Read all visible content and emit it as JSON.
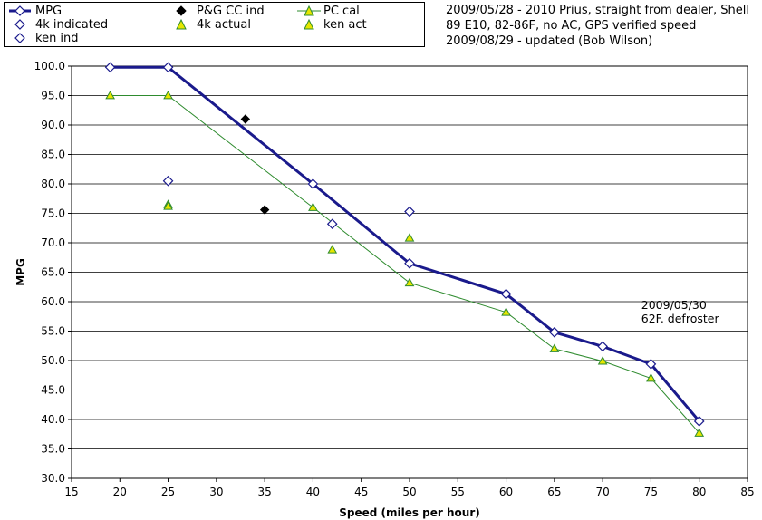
{
  "chart_data": {
    "type": "line",
    "xlabel": "Speed (miles per hour)",
    "ylabel": "MPG",
    "xlim": [
      15,
      85
    ],
    "ylim": [
      30,
      100
    ],
    "xticks": [
      "15",
      "20",
      "25",
      "30",
      "35",
      "40",
      "45",
      "50",
      "55",
      "60",
      "65",
      "70",
      "75",
      "80",
      "85"
    ],
    "yticks": [
      "30.0",
      "35.0",
      "40.0",
      "45.0",
      "50.0",
      "55.0",
      "60.0",
      "65.0",
      "70.0",
      "75.0",
      "80.0",
      "85.0",
      "90.0",
      "95.0",
      "100.0"
    ],
    "grid": "horizontal",
    "legend": [
      "MPG",
      "4k indicated",
      "ken ind",
      "P&G CC ind",
      "4k actual",
      "PC cal",
      "ken act"
    ],
    "series": [
      {
        "name": "MPG",
        "style": "line-diamond",
        "color": "#1a1a8c",
        "x": [
          19,
          25,
          40,
          50,
          60,
          65,
          70,
          75,
          80
        ],
        "y": [
          99.8,
          99.8,
          80.0,
          66.5,
          61.3,
          54.8,
          52.4,
          49.4,
          39.7
        ]
      },
      {
        "name": "PC cal",
        "style": "line-triangle",
        "color": "#2e8b2e",
        "x": [
          19,
          25,
          40,
          50,
          60,
          65,
          70,
          75,
          80
        ],
        "y": [
          95.0,
          95.0,
          76.0,
          63.2,
          58.2,
          52.0,
          49.9,
          47.0,
          37.7
        ]
      },
      {
        "name": "4k indicated",
        "style": "diamond-open",
        "color": "#1a1a8c",
        "x": [
          25,
          42,
          50
        ],
        "y": [
          80.5,
          73.2,
          75.3
        ]
      },
      {
        "name": "P&G CC ind",
        "style": "diamond-filled",
        "color": "#000000",
        "x": [
          33,
          35
        ],
        "y": [
          91.0,
          75.6
        ]
      },
      {
        "name": "4k actual",
        "style": "triangle-yellow",
        "color": "#cccc00",
        "x": [
          25,
          42,
          50
        ],
        "y": [
          76.5,
          68.8,
          70.8
        ]
      },
      {
        "name": "ken act",
        "style": "triangle-yellow",
        "color": "#cccc00",
        "x": [
          25
        ],
        "y": [
          76.2
        ]
      }
    ],
    "annotations": [
      {
        "text": "2009/05/30",
        "x": 74,
        "y": 58.8
      },
      {
        "text": "62F. defroster",
        "x": 74,
        "y": 56.5
      }
    ]
  },
  "notes": [
    "2009/05/28 - 2010 Prius, straight from dealer, Shell",
    "89 E10, 82-86F, no AC, GPS verified speed",
    "2009/08/29 - updated (Bob Wilson)"
  ],
  "colors": {
    "mpg": "#1a1a8c",
    "pc": "#2e8b2e",
    "yellow": "#e6e600",
    "black": "#000000"
  }
}
